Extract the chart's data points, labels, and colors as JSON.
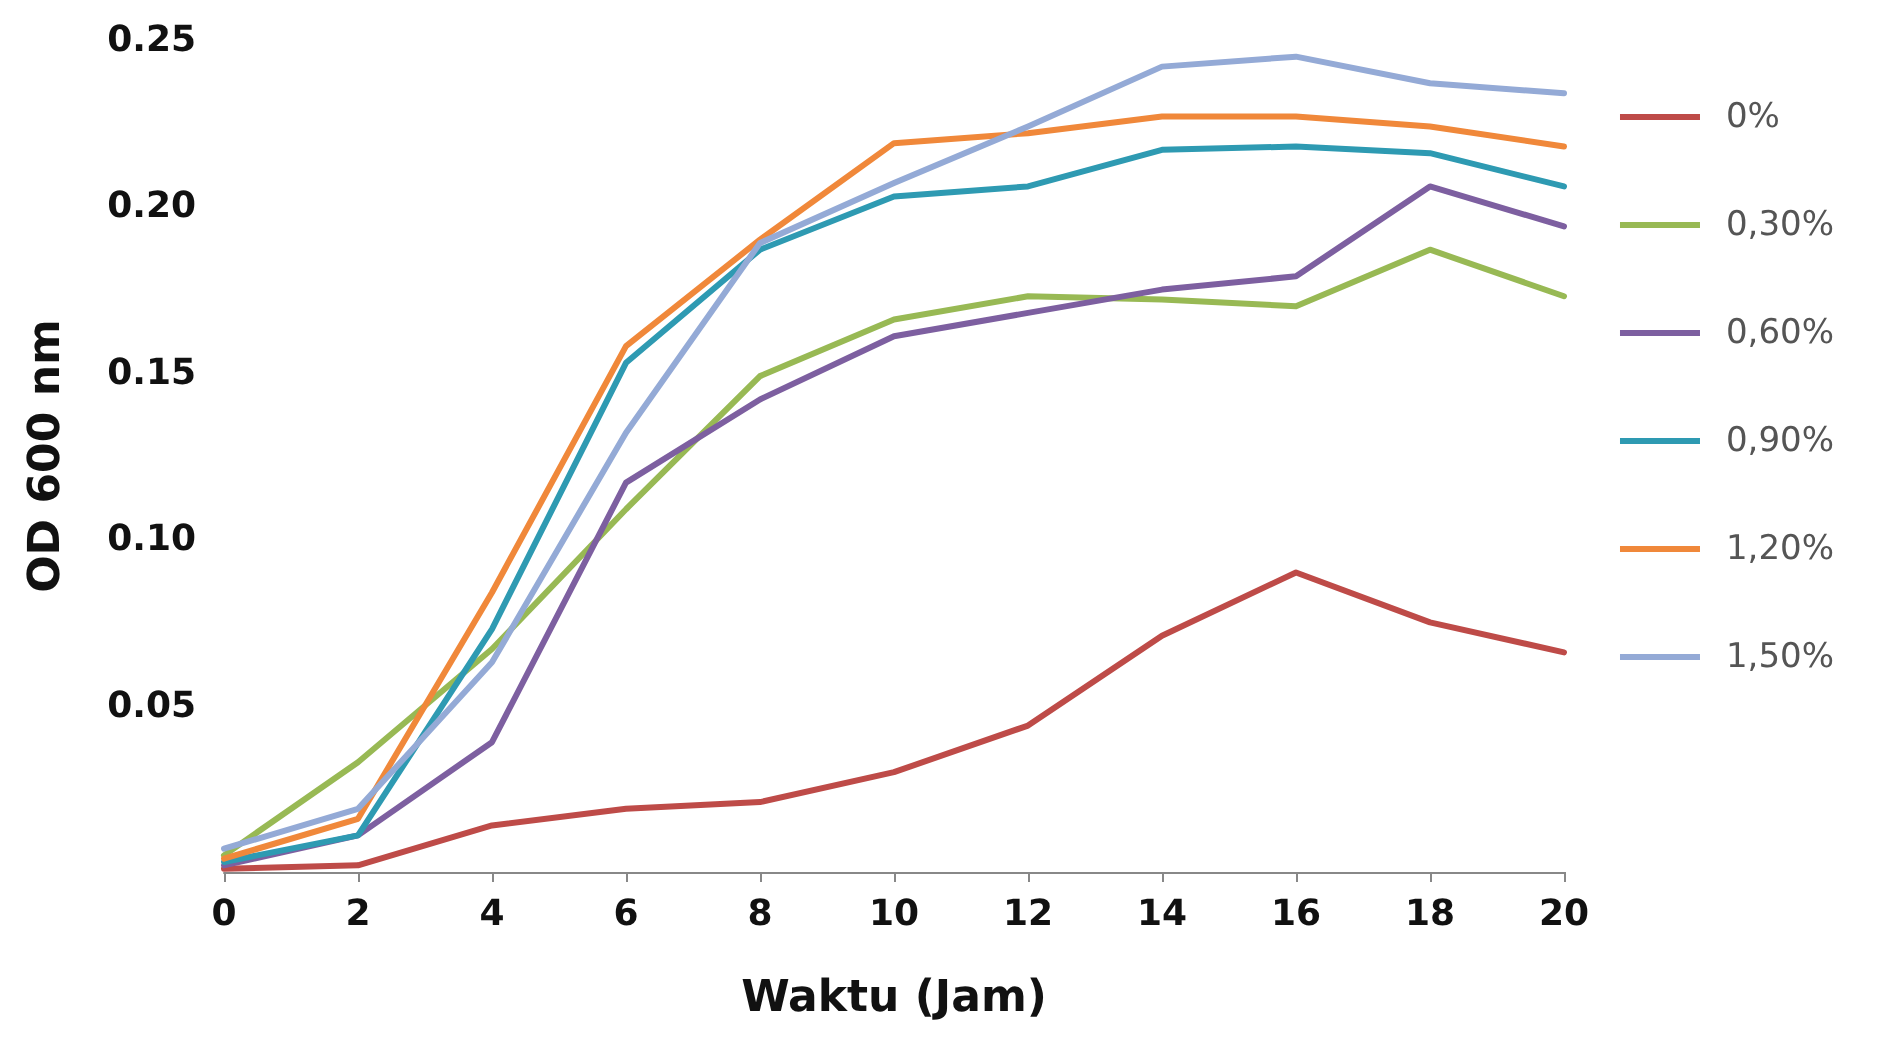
{
  "chart_data": {
    "type": "line",
    "xlabel": "Waktu (Jam)",
    "ylabel": "OD 600 nm",
    "x": [
      0,
      2,
      4,
      6,
      8,
      10,
      12,
      14,
      16,
      18,
      20
    ],
    "series": [
      {
        "name": "0%",
        "color": "#be4b48",
        "values": [
          0.001,
          0.002,
          0.014,
          0.019,
          0.021,
          0.03,
          0.044,
          0.071,
          0.09,
          0.075,
          0.066
        ]
      },
      {
        "name": "0,30%",
        "color": "#98b954",
        "values": [
          0.005,
          0.033,
          0.067,
          0.109,
          0.149,
          0.166,
          0.173,
          0.172,
          0.17,
          0.187,
          0.173
        ]
      },
      {
        "name": "0,60%",
        "color": "#7d5fa0",
        "values": [
          0.002,
          0.011,
          0.039,
          0.117,
          0.142,
          0.161,
          0.168,
          0.175,
          0.179,
          0.206,
          0.194
        ]
      },
      {
        "name": "0,90%",
        "color": "#2e9ab2",
        "values": [
          0.003,
          0.011,
          0.073,
          0.153,
          0.187,
          0.203,
          0.206,
          0.217,
          0.218,
          0.216,
          0.206
        ]
      },
      {
        "name": "1,20%",
        "color": "#f0883a",
        "values": [
          0.004,
          0.016,
          0.084,
          0.158,
          0.19,
          0.219,
          0.222,
          0.227,
          0.227,
          0.224,
          0.218
        ]
      },
      {
        "name": "1,50%",
        "color": "#94aad6",
        "values": [
          0.007,
          0.019,
          0.063,
          0.132,
          0.189,
          0.207,
          0.224,
          0.242,
          0.245,
          0.237,
          0.234
        ]
      }
    ],
    "xlim": [
      0,
      20
    ],
    "xticks": [
      0,
      2,
      4,
      6,
      8,
      10,
      12,
      14,
      16,
      18,
      20
    ],
    "ylim": [
      0,
      0.25
    ],
    "yticks": [
      {
        "value": 0.05,
        "label": "0.05"
      },
      {
        "value": 0.1,
        "label": "0.10"
      },
      {
        "value": 0.15,
        "label": "0.15"
      },
      {
        "value": 0.2,
        "label": "0.20"
      },
      {
        "value": 0.25,
        "label": "0.25"
      }
    ],
    "grid": false,
    "legend": "right",
    "marker": "none",
    "line_style": "solid"
  }
}
